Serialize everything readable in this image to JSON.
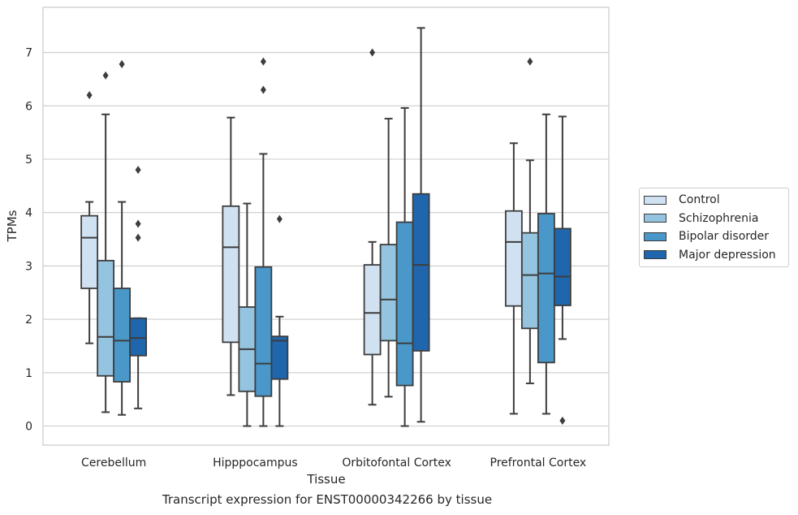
{
  "chart_data": {
    "type": "box",
    "title": "",
    "caption": "Transcript expression for ENST00000342266 by tissue",
    "xlabel": "Tissue",
    "ylabel": "TPMs",
    "ylim": [
      -0.35,
      7.7
    ],
    "yticks": [
      0,
      1,
      2,
      3,
      4,
      5,
      6,
      7
    ],
    "grid": "horizontal",
    "legend_position": "right",
    "categories": [
      "Cerebellum",
      "Hipppocampus",
      "Orbitofontal Cortex",
      "Prefrontal Cortex"
    ],
    "series": [
      {
        "name": "Control",
        "color": "#d0e1f2",
        "boxes": [
          {
            "whisker_low": 1.55,
            "q1": 2.58,
            "median": 3.53,
            "q3": 3.94,
            "whisker_high": 4.2,
            "outliers": [
              6.2
            ]
          },
          {
            "whisker_low": 0.58,
            "q1": 1.57,
            "median": 3.35,
            "q3": 4.12,
            "whisker_high": 5.78,
            "outliers": []
          },
          {
            "whisker_low": 0.4,
            "q1": 1.34,
            "median": 2.12,
            "q3": 3.02,
            "whisker_high": 3.45,
            "outliers": [
              7.0
            ]
          },
          {
            "whisker_low": 0.23,
            "q1": 2.25,
            "median": 3.45,
            "q3": 4.03,
            "whisker_high": 5.3,
            "outliers": []
          }
        ]
      },
      {
        "name": "Schizophrenia",
        "color": "#94c4df",
        "boxes": [
          {
            "whisker_low": 0.26,
            "q1": 0.94,
            "median": 1.67,
            "q3": 3.1,
            "whisker_high": 5.84,
            "outliers": [
              6.57
            ]
          },
          {
            "whisker_low": 0.0,
            "q1": 0.65,
            "median": 1.44,
            "q3": 2.23,
            "whisker_high": 4.17,
            "outliers": []
          },
          {
            "whisker_low": 0.55,
            "q1": 1.6,
            "median": 2.37,
            "q3": 3.4,
            "whisker_high": 5.76,
            "outliers": []
          },
          {
            "whisker_low": 0.8,
            "q1": 1.83,
            "median": 2.83,
            "q3": 3.62,
            "whisker_high": 4.98,
            "outliers": [
              6.83
            ]
          }
        ]
      },
      {
        "name": "Bipolar disorder",
        "color": "#4a98c9",
        "boxes": [
          {
            "whisker_low": 0.21,
            "q1": 0.83,
            "median": 1.6,
            "q3": 2.58,
            "whisker_high": 4.2,
            "outliers": [
              6.78
            ]
          },
          {
            "whisker_low": 0.0,
            "q1": 0.56,
            "median": 1.17,
            "q3": 2.98,
            "whisker_high": 5.1,
            "outliers": [
              6.83,
              6.3
            ]
          },
          {
            "whisker_low": 0.0,
            "q1": 0.76,
            "median": 1.55,
            "q3": 3.82,
            "whisker_high": 5.96,
            "outliers": []
          },
          {
            "whisker_low": 0.23,
            "q1": 1.19,
            "median": 2.86,
            "q3": 3.98,
            "whisker_high": 5.84,
            "outliers": []
          }
        ]
      },
      {
        "name": "Major depression",
        "color": "#2066ac",
        "boxes": [
          {
            "whisker_low": 0.33,
            "q1": 1.32,
            "median": 1.65,
            "q3": 2.02,
            "whisker_high": 2.02,
            "outliers": [
              4.8,
              3.79,
              3.53
            ]
          },
          {
            "whisker_low": 0.0,
            "q1": 0.88,
            "median": 1.6,
            "q3": 1.68,
            "whisker_high": 2.05,
            "outliers": [
              3.88
            ]
          },
          {
            "whisker_low": 0.08,
            "q1": 1.41,
            "median": 3.02,
            "q3": 4.35,
            "whisker_high": 7.46,
            "outliers": []
          },
          {
            "whisker_low": 1.63,
            "q1": 2.26,
            "median": 2.8,
            "q3": 3.7,
            "whisker_high": 5.8,
            "outliers": [
              0.1
            ]
          }
        ]
      }
    ]
  }
}
